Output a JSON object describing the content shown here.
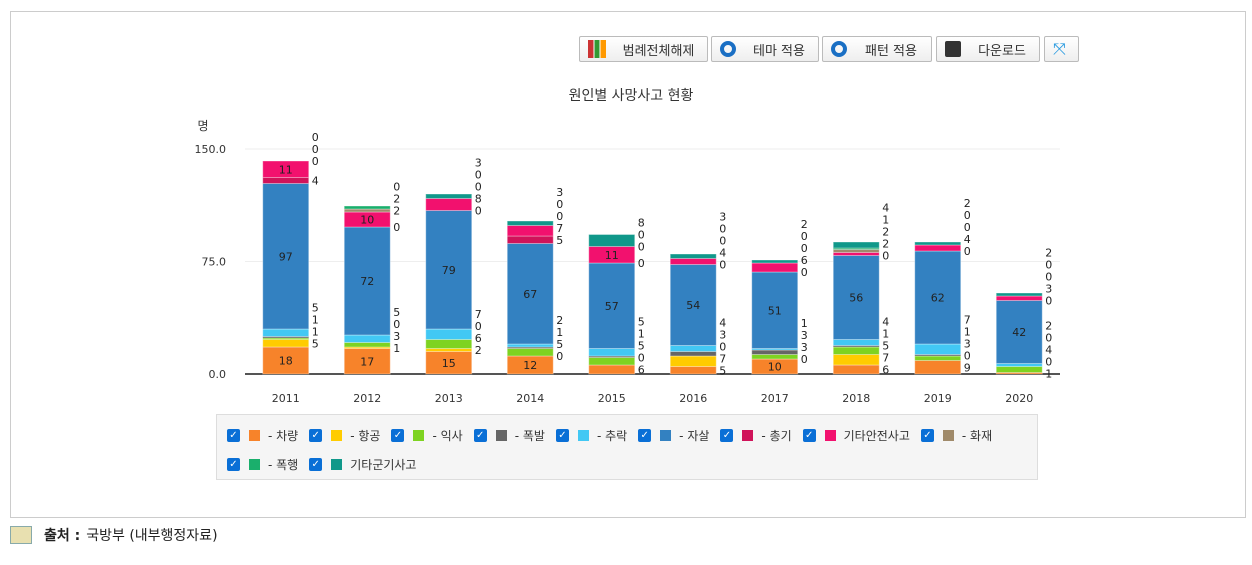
{
  "toolbar": {
    "legend_off": "범례전체해제",
    "theme": "테마 적용",
    "pattern": "패턴 적용",
    "download": "다운로드"
  },
  "source": {
    "label": "출처 :",
    "value": "국방부 (내부행정자료)"
  },
  "chart_data": {
    "type": "bar",
    "stacked": true,
    "title": "원인별 사망사고 현황",
    "ylabel": "명",
    "xlabel": "",
    "ylim": [
      0,
      150
    ],
    "yticks": [
      "0.0",
      "75.0",
      "150.0"
    ],
    "categories": [
      "2011",
      "2012",
      "2013",
      "2014",
      "2015",
      "2016",
      "2017",
      "2018",
      "2019",
      "2020"
    ],
    "legend_position": "bottom",
    "series": [
      {
        "name": "차량",
        "legend": "- 차량",
        "color": "#f7832a",
        "values": [
          18,
          17,
          15,
          12,
          6,
          5,
          10,
          6,
          9,
          1
        ]
      },
      {
        "name": "항공",
        "legend": "- 항공",
        "color": "#ffcc00",
        "values": [
          5,
          1,
          2,
          0,
          0,
          7,
          0,
          7,
          0,
          0
        ]
      },
      {
        "name": "익사",
        "legend": "- 익사",
        "color": "#7ed321",
        "values": [
          1,
          3,
          6,
          5,
          5,
          0,
          3,
          5,
          3,
          4
        ]
      },
      {
        "name": "폭발",
        "legend": "- 폭발",
        "color": "#666666",
        "values": [
          1,
          0,
          0,
          1,
          1,
          3,
          3,
          1,
          1,
          0
        ]
      },
      {
        "name": "추락",
        "legend": "- 추락",
        "color": "#42c8f4",
        "values": [
          5,
          5,
          7,
          2,
          5,
          4,
          1,
          4,
          7,
          2
        ]
      },
      {
        "name": "자살",
        "legend": "- 자살",
        "color": "#3381c1",
        "values": [
          97,
          72,
          79,
          67,
          57,
          54,
          51,
          56,
          62,
          42
        ]
      },
      {
        "name": "총기",
        "legend": "- 총기",
        "color": "#d0135a",
        "values": [
          4,
          0,
          0,
          5,
          0,
          0,
          0,
          0,
          0,
          0
        ]
      },
      {
        "name": "기타안전사고",
        "legend": "기타안전사고",
        "color": "#f2116e",
        "values": [
          11,
          10,
          8,
          7,
          11,
          4,
          6,
          2,
          4,
          3
        ]
      },
      {
        "name": "화재",
        "legend": "- 화재",
        "color": "#a08a6a",
        "values": [
          0,
          2,
          0,
          0,
          0,
          0,
          0,
          2,
          0,
          0
        ]
      },
      {
        "name": "폭행",
        "legend": "- 폭행",
        "color": "#1aaf6c",
        "values": [
          0,
          2,
          0,
          0,
          0,
          0,
          0,
          1,
          0,
          0
        ]
      },
      {
        "name": "기타군기사고",
        "legend": "기타군기사고",
        "color": "#10988a",
        "values": [
          0,
          0,
          3,
          3,
          8,
          3,
          2,
          4,
          2,
          2
        ]
      }
    ]
  }
}
